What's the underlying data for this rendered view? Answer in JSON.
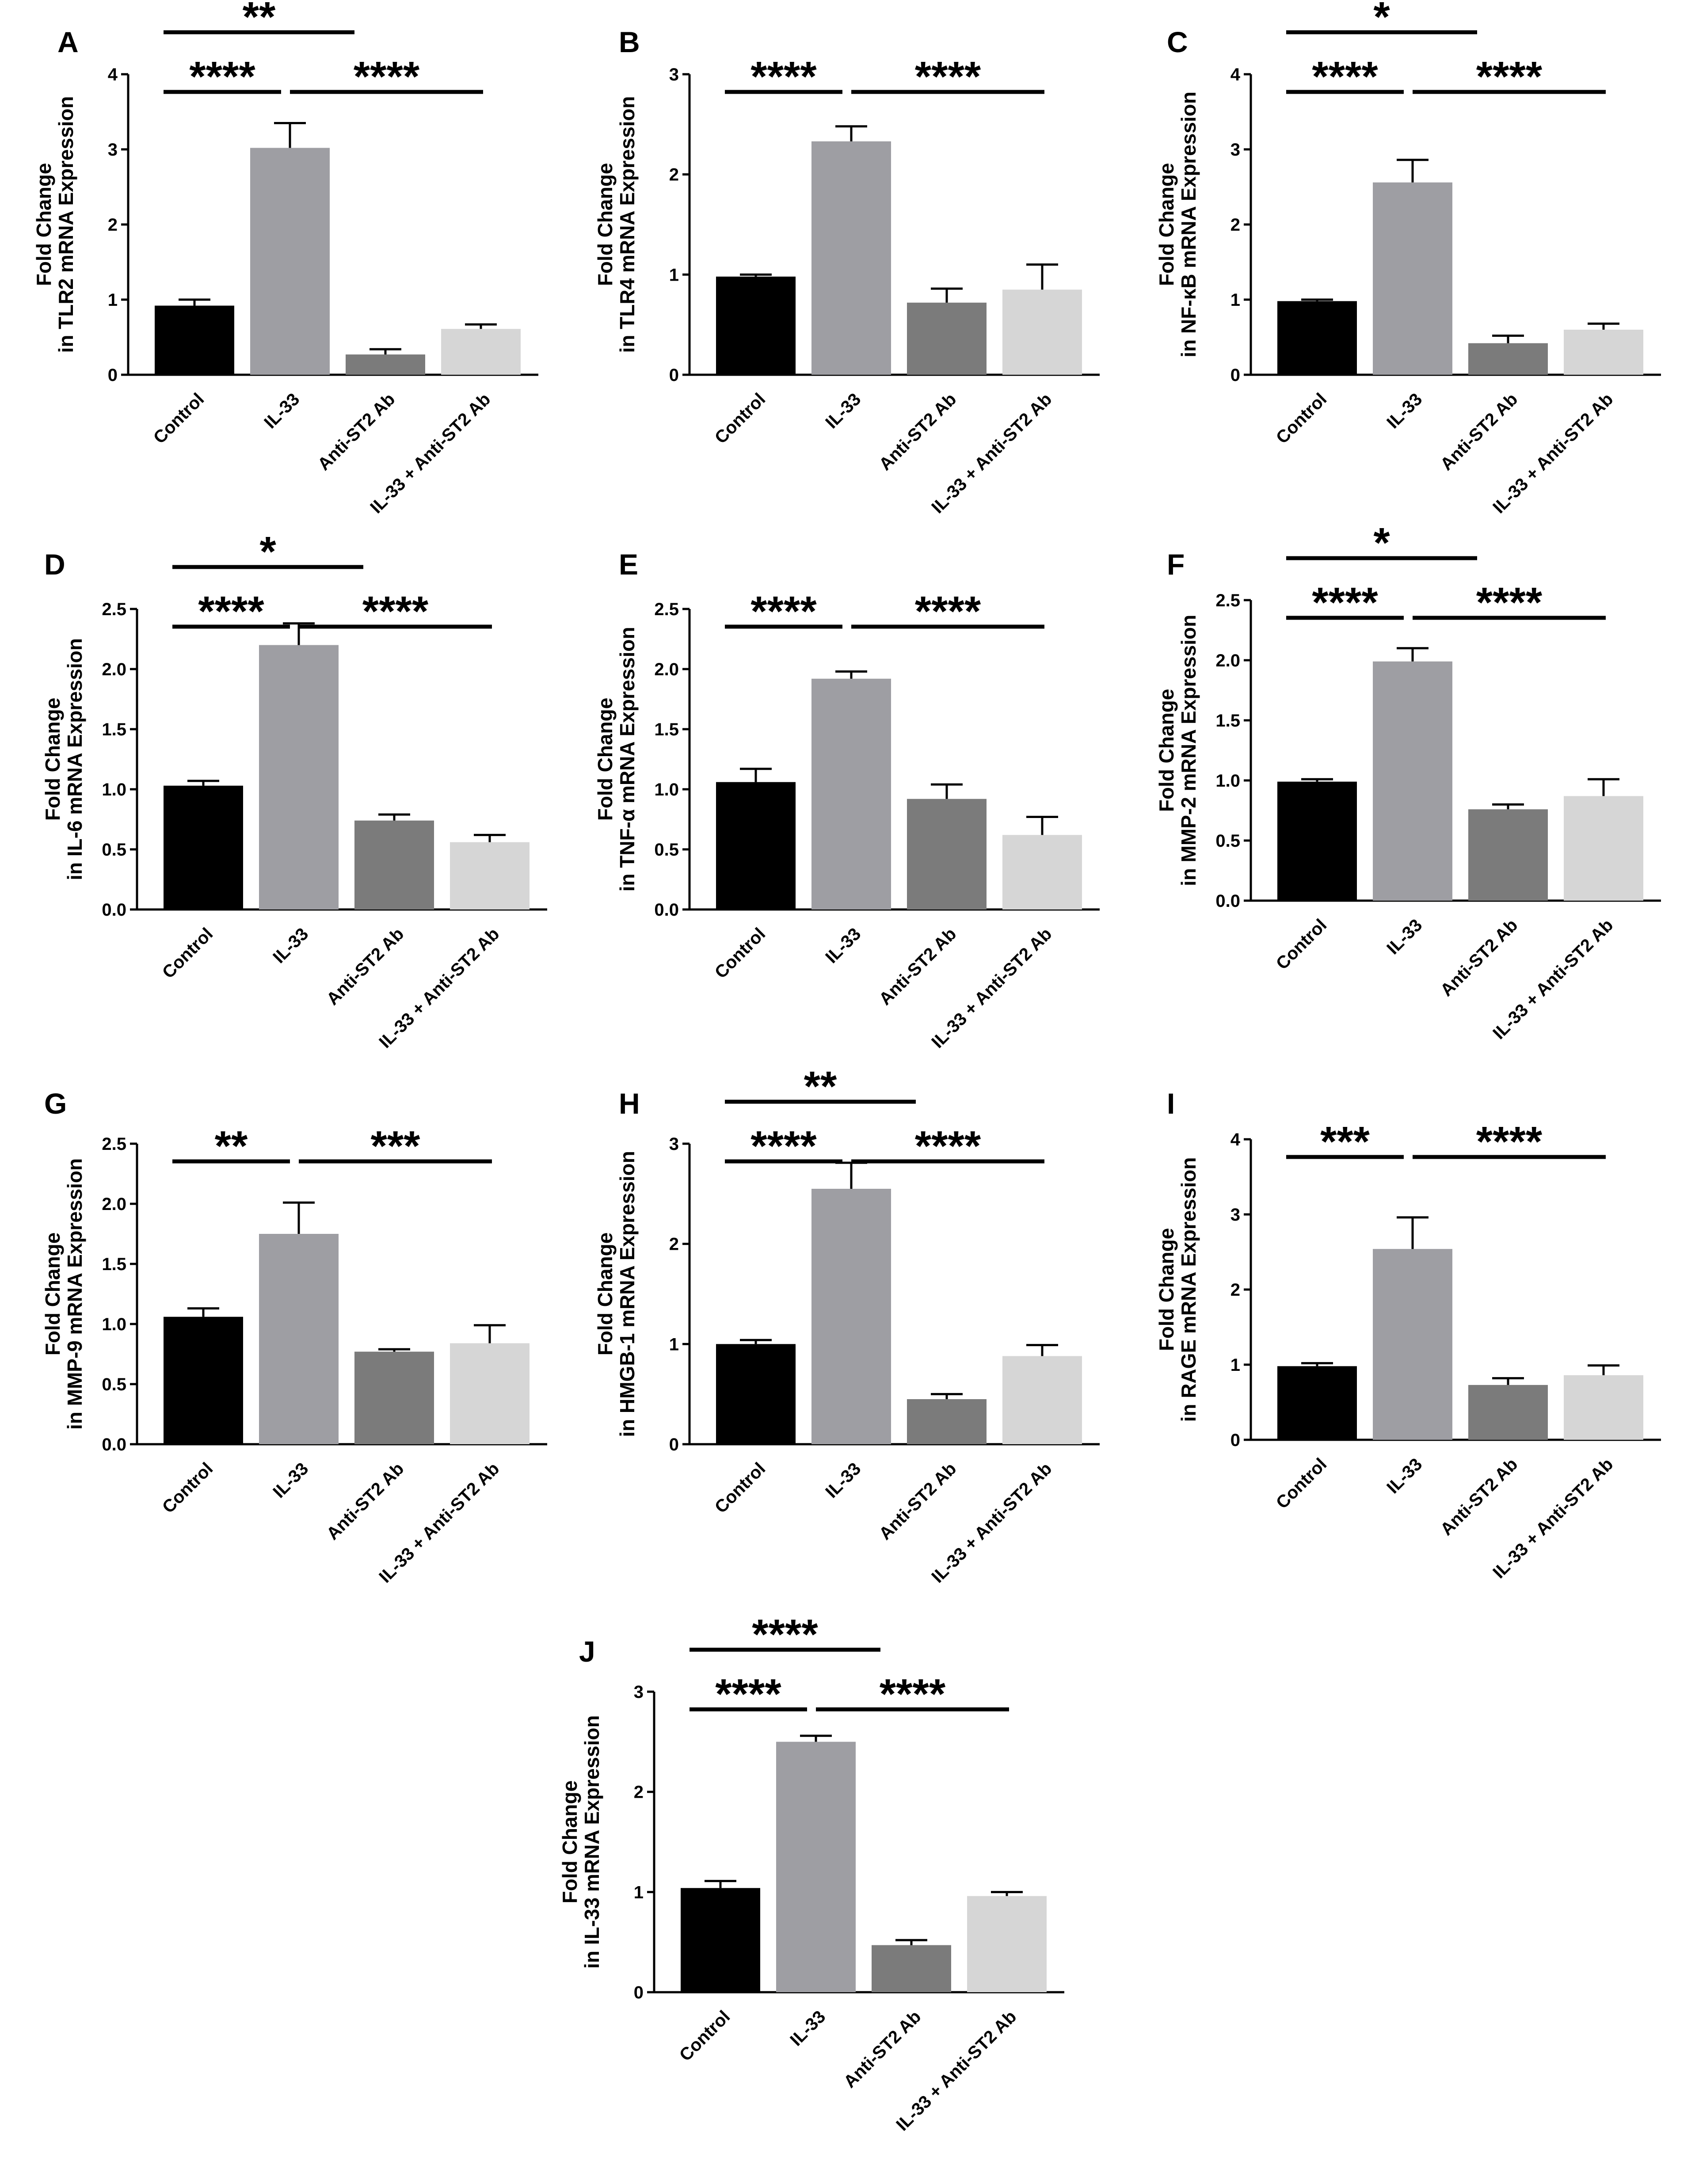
{
  "chart_data": [
    {
      "panel": "A",
      "type": "bar",
      "title": "",
      "ylabel_line1": "Fold Change",
      "ylabel_line2": "in TLR2 mRNA Expression",
      "categories": [
        "Control",
        "IL-33",
        "Anti-ST2 Ab",
        "IL-33 + Anti-ST2 Ab"
      ],
      "values": [
        0.92,
        3.02,
        0.27,
        0.61
      ],
      "errors": [
        0.08,
        0.33,
        0.07,
        0.06
      ],
      "ylim": [
        0,
        4
      ],
      "yticks": [
        "0",
        "1",
        "2",
        "3",
        "4"
      ],
      "tick_values": [
        0,
        1,
        2,
        3,
        4
      ],
      "significance": [
        {
          "from": 0,
          "to": 2,
          "label": "**"
        },
        {
          "from": 0,
          "to": 1,
          "label": "****"
        },
        {
          "from": 1,
          "to": 3,
          "label": "****"
        }
      ]
    },
    {
      "panel": "B",
      "type": "bar",
      "title": "",
      "ylabel_line1": "Fold Change",
      "ylabel_line2": "in TLR4 mRNA Expression",
      "categories": [
        "Control",
        "IL-33",
        "Anti-ST2 Ab",
        "IL-33 + Anti-ST2 Ab"
      ],
      "values": [
        0.98,
        2.33,
        0.72,
        0.85
      ],
      "errors": [
        0.02,
        0.15,
        0.14,
        0.25
      ],
      "ylim": [
        0,
        3
      ],
      "yticks": [
        "0",
        "1",
        "2",
        "3"
      ],
      "tick_values": [
        0,
        1,
        2,
        3
      ],
      "significance": [
        {
          "from": 0,
          "to": 1,
          "label": "****"
        },
        {
          "from": 1,
          "to": 3,
          "label": "****"
        }
      ]
    },
    {
      "panel": "C",
      "type": "bar",
      "title": "",
      "ylabel_line1": "Fold Change",
      "ylabel_line2": "in NF-κB mRNA Expression",
      "categories": [
        "Control",
        "IL-33",
        "Anti-ST2 Ab",
        "IL-33 + Anti-ST2 Ab"
      ],
      "values": [
        0.98,
        2.56,
        0.42,
        0.6
      ],
      "errors": [
        0.02,
        0.3,
        0.1,
        0.08
      ],
      "ylim": [
        0,
        4
      ],
      "yticks": [
        "0",
        "1",
        "2",
        "3",
        "4"
      ],
      "tick_values": [
        0,
        1,
        2,
        3,
        4
      ],
      "significance": [
        {
          "from": 0,
          "to": 2,
          "label": "*"
        },
        {
          "from": 0,
          "to": 1,
          "label": "****"
        },
        {
          "from": 1,
          "to": 3,
          "label": "****"
        }
      ]
    },
    {
      "panel": "D",
      "type": "bar",
      "title": "",
      "ylabel_line1": "Fold Change",
      "ylabel_line2": "in IL-6 mRNA Expression",
      "categories": [
        "Control",
        "IL-33",
        "Anti-ST2 Ab",
        "IL-33 + Anti-ST2 Ab"
      ],
      "values": [
        1.03,
        2.2,
        0.74,
        0.56
      ],
      "errors": [
        0.04,
        0.18,
        0.05,
        0.06
      ],
      "ylim": [
        0,
        2.5
      ],
      "yticks": [
        "0.0",
        "0.5",
        "1.0",
        "1.5",
        "2.0",
        "2.5"
      ],
      "tick_values": [
        0,
        0.5,
        1,
        1.5,
        2,
        2.5
      ],
      "significance": [
        {
          "from": 0,
          "to": 2,
          "label": "*"
        },
        {
          "from": 0,
          "to": 1,
          "label": "****"
        },
        {
          "from": 1,
          "to": 3,
          "label": "****"
        }
      ]
    },
    {
      "panel": "E",
      "type": "bar",
      "title": "",
      "ylabel_line1": "Fold Change",
      "ylabel_line2": "in TNF-α mRNA Expression",
      "categories": [
        "Control",
        "IL-33",
        "Anti-ST2 Ab",
        "IL-33 + Anti-ST2 Ab"
      ],
      "values": [
        1.06,
        1.92,
        0.92,
        0.62
      ],
      "errors": [
        0.11,
        0.06,
        0.12,
        0.15
      ],
      "ylim": [
        0,
        2.5
      ],
      "yticks": [
        "0.0",
        "0.5",
        "1.0",
        "1.5",
        "2.0",
        "2.5"
      ],
      "tick_values": [
        0,
        0.5,
        1,
        1.5,
        2,
        2.5
      ],
      "significance": [
        {
          "from": 0,
          "to": 1,
          "label": "****"
        },
        {
          "from": 1,
          "to": 3,
          "label": "****"
        }
      ]
    },
    {
      "panel": "F",
      "type": "bar",
      "title": "",
      "ylabel_line1": "Fold Change",
      "ylabel_line2": "in MMP-2 mRNA Expression",
      "categories": [
        "Control",
        "IL-33",
        "Anti-ST2 Ab",
        "IL-33 + Anti-ST2 Ab"
      ],
      "values": [
        0.99,
        1.99,
        0.76,
        0.87
      ],
      "errors": [
        0.02,
        0.11,
        0.04,
        0.14
      ],
      "ylim": [
        0,
        2.5
      ],
      "yticks": [
        "0.0",
        "0.5",
        "1.0",
        "1.5",
        "2.0",
        "2.5"
      ],
      "tick_values": [
        0,
        0.5,
        1,
        1.5,
        2,
        2.5
      ],
      "significance": [
        {
          "from": 0,
          "to": 2,
          "label": "*"
        },
        {
          "from": 0,
          "to": 1,
          "label": "****"
        },
        {
          "from": 1,
          "to": 3,
          "label": "****"
        }
      ]
    },
    {
      "panel": "G",
      "type": "bar",
      "title": "",
      "ylabel_line1": "Fold Change",
      "ylabel_line2": "in MMP-9 mRNA Expression",
      "categories": [
        "Control",
        "IL-33",
        "Anti-ST2 Ab",
        "IL-33 + Anti-ST2 Ab"
      ],
      "values": [
        1.06,
        1.75,
        0.77,
        0.84
      ],
      "errors": [
        0.07,
        0.26,
        0.02,
        0.15
      ],
      "ylim": [
        0,
        2.5
      ],
      "yticks": [
        "0.0",
        "0.5",
        "1.0",
        "1.5",
        "2.0",
        "2.5"
      ],
      "tick_values": [
        0,
        0.5,
        1,
        1.5,
        2,
        2.5
      ],
      "significance": [
        {
          "from": 0,
          "to": 1,
          "label": "**"
        },
        {
          "from": 1,
          "to": 3,
          "label": "***"
        }
      ]
    },
    {
      "panel": "H",
      "type": "bar",
      "title": "",
      "ylabel_line1": "Fold Change",
      "ylabel_line2": "in HMGB-1 mRNA Expression",
      "categories": [
        "Control",
        "IL-33",
        "Anti-ST2 Ab",
        "IL-33 + Anti-ST2 Ab"
      ],
      "values": [
        1.0,
        2.55,
        0.45,
        0.88
      ],
      "errors": [
        0.04,
        0.26,
        0.05,
        0.11
      ],
      "ylim": [
        0,
        3
      ],
      "yticks": [
        "0",
        "1",
        "2",
        "3"
      ],
      "tick_values": [
        0,
        1,
        2,
        3
      ],
      "significance": [
        {
          "from": 0,
          "to": 2,
          "label": "**"
        },
        {
          "from": 0,
          "to": 1,
          "label": "****"
        },
        {
          "from": 1,
          "to": 3,
          "label": "****"
        }
      ]
    },
    {
      "panel": "I",
      "type": "bar",
      "title": "",
      "ylabel_line1": "Fold Change",
      "ylabel_line2": "in RAGE mRNA Expression",
      "categories": [
        "Control",
        "IL-33",
        "Anti-ST2 Ab",
        "IL-33 + Anti-ST2 Ab"
      ],
      "values": [
        0.98,
        2.54,
        0.73,
        0.86
      ],
      "errors": [
        0.04,
        0.42,
        0.09,
        0.13
      ],
      "ylim": [
        0,
        4
      ],
      "yticks": [
        "0",
        "1",
        "2",
        "3",
        "4"
      ],
      "tick_values": [
        0,
        1,
        2,
        3,
        4
      ],
      "significance": [
        {
          "from": 0,
          "to": 1,
          "label": "***"
        },
        {
          "from": 1,
          "to": 3,
          "label": "****"
        }
      ]
    },
    {
      "panel": "J",
      "type": "bar",
      "title": "",
      "ylabel_line1": "Fold Change",
      "ylabel_line2": "in IL-33 mRNA Expression",
      "categories": [
        "Control",
        "IL-33",
        "Anti-ST2 Ab",
        "IL-33 + Anti-ST2 Ab"
      ],
      "values": [
        1.04,
        2.5,
        0.47,
        0.96
      ],
      "errors": [
        0.07,
        0.06,
        0.05,
        0.04
      ],
      "ylim": [
        0,
        3
      ],
      "yticks": [
        "0",
        "1",
        "2",
        "3"
      ],
      "tick_values": [
        0,
        1,
        2,
        3
      ],
      "significance": [
        {
          "from": 0,
          "to": 2,
          "label": "****"
        },
        {
          "from": 0,
          "to": 1,
          "label": "****"
        },
        {
          "from": 1,
          "to": 3,
          "label": "****"
        }
      ]
    }
  ],
  "colors": {
    "bars": [
      "#000000",
      "#9e9ea3",
      "#7b7b7b",
      "#d6d6d6"
    ],
    "axis": "#000000"
  }
}
